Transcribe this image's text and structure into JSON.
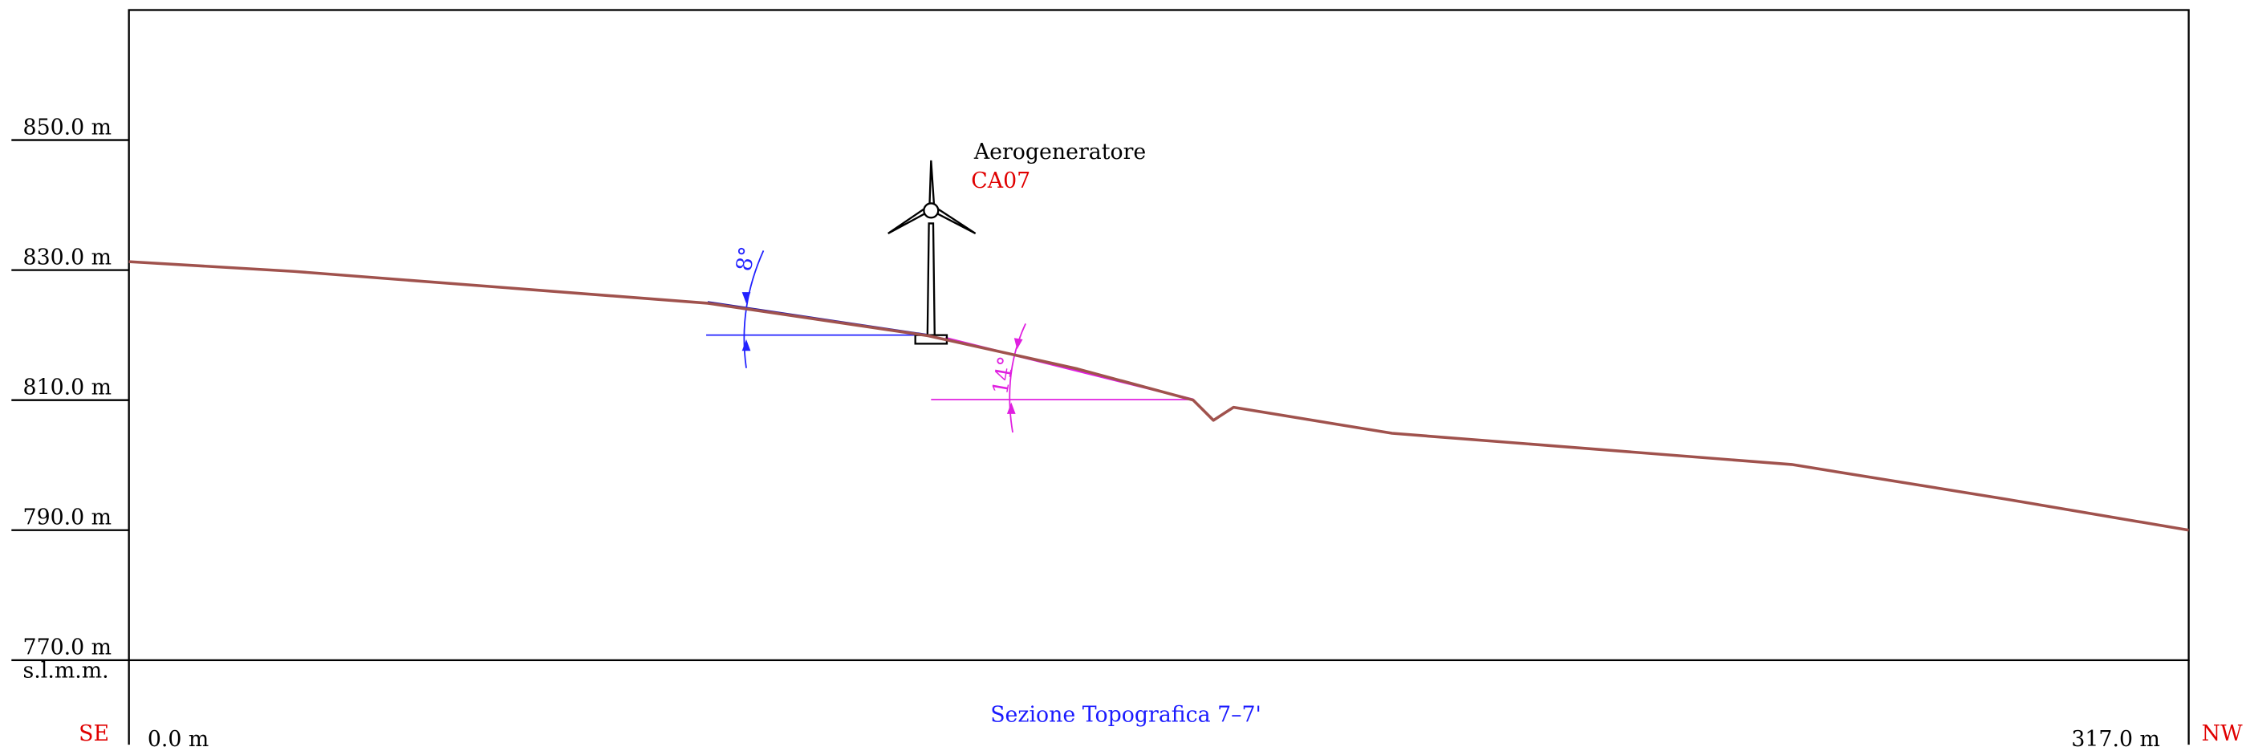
{
  "chart_data": {
    "type": "line",
    "title": "Sezione Topografica 7–7'",
    "x": [
      0,
      25.4,
      89.1,
      123.0,
      146.0,
      163.8,
      166.9,
      170.0,
      194.4,
      255.9,
      288.7,
      317.0
    ],
    "series": [
      {
        "color": "#a0524d",
        "values": [
          831.3,
          829.8,
          824.9,
          819.9,
          814.8,
          810.0,
          806.9,
          808.9,
          804.9,
          800.1,
          794.8,
          790.0
        ]
      }
    ],
    "xlim": [
      0,
      317
    ],
    "xticks": [
      {
        "value": 0,
        "label": "0.0  m"
      },
      {
        "value": 317,
        "label": "317.0  m"
      }
    ],
    "ylim": [
      770,
      870
    ],
    "yticks": [
      {
        "value": 770,
        "label": "770.0  m"
      },
      {
        "value": 790,
        "label": "790.0  m"
      },
      {
        "value": 810,
        "label": "810.0  m"
      },
      {
        "value": 830,
        "label": "830.0  m"
      },
      {
        "value": 850,
        "label": "850.0  m"
      }
    ],
    "y_axis_label": "s.l.m.m.",
    "left_label": "SE",
    "right_label": "NW",
    "annotations": {
      "turbine": "Aerogeneratore",
      "turbine_id": "CA07",
      "slope_left": "8°",
      "slope_right": "14°"
    }
  }
}
